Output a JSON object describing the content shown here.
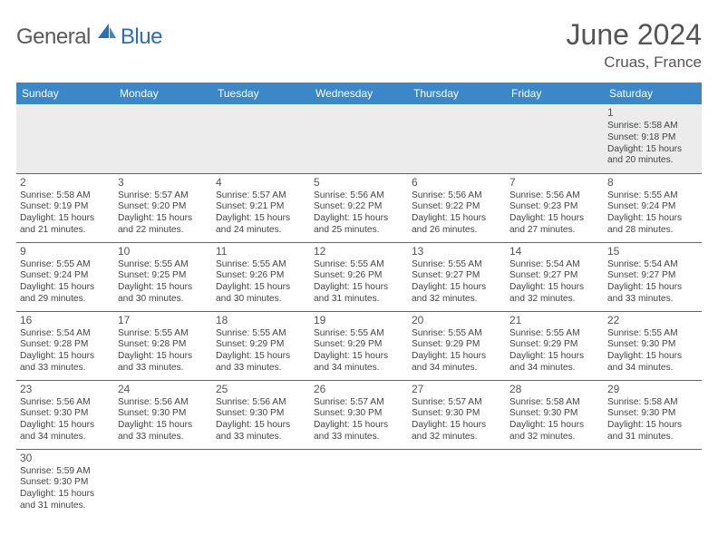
{
  "logo": {
    "part1": "General",
    "part2": "Blue"
  },
  "title": "June 2024",
  "location": "Cruas, France",
  "colors": {
    "header_bg": "#3b87c8",
    "header_text": "#ffffff",
    "rule": "#2a6db8",
    "blank_bg": "#ececec",
    "body_text": "#444444",
    "title_text": "#555555",
    "logo_gray": "#5a5a5a",
    "logo_blue": "#2a6db8"
  },
  "day_headers": [
    "Sunday",
    "Monday",
    "Tuesday",
    "Wednesday",
    "Thursday",
    "Friday",
    "Saturday"
  ],
  "weeks": [
    [
      null,
      null,
      null,
      null,
      null,
      null,
      {
        "n": "1",
        "sr": "5:58 AM",
        "ss": "9:18 PM",
        "dl": "15 hours and 20 minutes."
      }
    ],
    [
      {
        "n": "2",
        "sr": "5:58 AM",
        "ss": "9:19 PM",
        "dl": "15 hours and 21 minutes."
      },
      {
        "n": "3",
        "sr": "5:57 AM",
        "ss": "9:20 PM",
        "dl": "15 hours and 22 minutes."
      },
      {
        "n": "4",
        "sr": "5:57 AM",
        "ss": "9:21 PM",
        "dl": "15 hours and 24 minutes."
      },
      {
        "n": "5",
        "sr": "5:56 AM",
        "ss": "9:22 PM",
        "dl": "15 hours and 25 minutes."
      },
      {
        "n": "6",
        "sr": "5:56 AM",
        "ss": "9:22 PM",
        "dl": "15 hours and 26 minutes."
      },
      {
        "n": "7",
        "sr": "5:56 AM",
        "ss": "9:23 PM",
        "dl": "15 hours and 27 minutes."
      },
      {
        "n": "8",
        "sr": "5:55 AM",
        "ss": "9:24 PM",
        "dl": "15 hours and 28 minutes."
      }
    ],
    [
      {
        "n": "9",
        "sr": "5:55 AM",
        "ss": "9:24 PM",
        "dl": "15 hours and 29 minutes."
      },
      {
        "n": "10",
        "sr": "5:55 AM",
        "ss": "9:25 PM",
        "dl": "15 hours and 30 minutes."
      },
      {
        "n": "11",
        "sr": "5:55 AM",
        "ss": "9:26 PM",
        "dl": "15 hours and 30 minutes."
      },
      {
        "n": "12",
        "sr": "5:55 AM",
        "ss": "9:26 PM",
        "dl": "15 hours and 31 minutes."
      },
      {
        "n": "13",
        "sr": "5:55 AM",
        "ss": "9:27 PM",
        "dl": "15 hours and 32 minutes."
      },
      {
        "n": "14",
        "sr": "5:54 AM",
        "ss": "9:27 PM",
        "dl": "15 hours and 32 minutes."
      },
      {
        "n": "15",
        "sr": "5:54 AM",
        "ss": "9:27 PM",
        "dl": "15 hours and 33 minutes."
      }
    ],
    [
      {
        "n": "16",
        "sr": "5:54 AM",
        "ss": "9:28 PM",
        "dl": "15 hours and 33 minutes."
      },
      {
        "n": "17",
        "sr": "5:55 AM",
        "ss": "9:28 PM",
        "dl": "15 hours and 33 minutes."
      },
      {
        "n": "18",
        "sr": "5:55 AM",
        "ss": "9:29 PM",
        "dl": "15 hours and 33 minutes."
      },
      {
        "n": "19",
        "sr": "5:55 AM",
        "ss": "9:29 PM",
        "dl": "15 hours and 34 minutes."
      },
      {
        "n": "20",
        "sr": "5:55 AM",
        "ss": "9:29 PM",
        "dl": "15 hours and 34 minutes."
      },
      {
        "n": "21",
        "sr": "5:55 AM",
        "ss": "9:29 PM",
        "dl": "15 hours and 34 minutes."
      },
      {
        "n": "22",
        "sr": "5:55 AM",
        "ss": "9:30 PM",
        "dl": "15 hours and 34 minutes."
      }
    ],
    [
      {
        "n": "23",
        "sr": "5:56 AM",
        "ss": "9:30 PM",
        "dl": "15 hours and 34 minutes."
      },
      {
        "n": "24",
        "sr": "5:56 AM",
        "ss": "9:30 PM",
        "dl": "15 hours and 33 minutes."
      },
      {
        "n": "25",
        "sr": "5:56 AM",
        "ss": "9:30 PM",
        "dl": "15 hours and 33 minutes."
      },
      {
        "n": "26",
        "sr": "5:57 AM",
        "ss": "9:30 PM",
        "dl": "15 hours and 33 minutes."
      },
      {
        "n": "27",
        "sr": "5:57 AM",
        "ss": "9:30 PM",
        "dl": "15 hours and 32 minutes."
      },
      {
        "n": "28",
        "sr": "5:58 AM",
        "ss": "9:30 PM",
        "dl": "15 hours and 32 minutes."
      },
      {
        "n": "29",
        "sr": "5:58 AM",
        "ss": "9:30 PM",
        "dl": "15 hours and 31 minutes."
      }
    ],
    [
      {
        "n": "30",
        "sr": "5:59 AM",
        "ss": "9:30 PM",
        "dl": "15 hours and 31 minutes."
      },
      null,
      null,
      null,
      null,
      null,
      null
    ]
  ],
  "labels": {
    "sunrise": "Sunrise: ",
    "sunset": "Sunset: ",
    "daylight": "Daylight: "
  }
}
